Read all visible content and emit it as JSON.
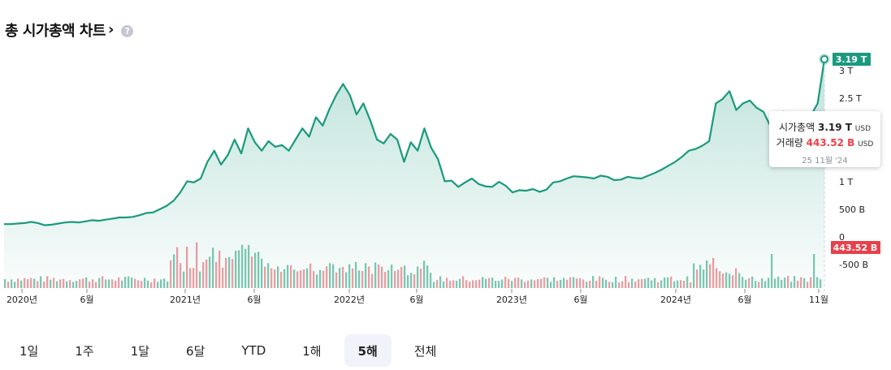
{
  "header": {
    "title": "총 시가총액 차트",
    "chevron": "›",
    "help_icon": "?"
  },
  "chart_data": {
    "type": "area",
    "y_unit": "USD",
    "y_ticks": [
      "3 T",
      "2.5 T",
      "1 T",
      "500 B",
      "0",
      "-500 B"
    ],
    "x_ticks": [
      "2020년",
      "6월",
      "2021년",
      "6월",
      "2022년",
      "6월",
      "2023년",
      "6월",
      "2024년",
      "6월",
      "11월"
    ],
    "ylim": [
      0,
      3.3
    ],
    "series": [
      {
        "values_trillion": [
          0.23,
          0.23,
          0.24,
          0.25,
          0.27,
          0.25,
          0.21,
          0.22,
          0.24,
          0.26,
          0.27,
          0.26,
          0.28,
          0.3,
          0.29,
          0.31,
          0.33,
          0.35,
          0.35,
          0.36,
          0.39,
          0.43,
          0.44,
          0.5,
          0.56,
          0.65,
          0.8,
          1.0,
          0.98,
          1.05,
          1.35,
          1.55,
          1.3,
          1.47,
          1.75,
          1.5,
          1.95,
          1.7,
          1.55,
          1.72,
          1.62,
          1.65,
          1.55,
          1.75,
          1.95,
          1.8,
          2.15,
          2.0,
          2.3,
          2.55,
          2.75,
          2.55,
          2.2,
          2.4,
          2.1,
          1.75,
          1.68,
          1.85,
          1.75,
          1.35,
          1.7,
          1.55,
          1.95,
          1.6,
          1.4,
          1.0,
          1.01,
          0.9,
          0.98,
          1.05,
          0.95,
          0.91,
          0.9,
          0.99,
          0.92,
          0.8,
          0.84,
          0.83,
          0.86,
          0.81,
          0.85,
          0.98,
          1.0,
          1.05,
          1.09,
          1.08,
          1.07,
          1.05,
          1.1,
          1.08,
          1.02,
          1.03,
          1.08,
          1.06,
          1.05,
          1.1,
          1.15,
          1.21,
          1.28,
          1.35,
          1.44,
          1.55,
          1.58,
          1.64,
          1.72,
          2.4,
          2.48,
          2.62,
          2.28,
          2.4,
          2.45,
          2.32,
          2.25,
          2.0,
          2.2,
          2.25,
          2.0,
          2.05,
          2.15,
          2.18,
          2.4,
          3.19
        ],
        "color": "#1a9a7e"
      }
    ],
    "volume_bars": {
      "up_color": "#7fc8b3",
      "down_color": "#f09ea4"
    },
    "last_value_badge": "3.19 T",
    "last_volume_badge": "443.52 B",
    "badge_up_color": "#1a9a7e",
    "badge_down_color": "#e8404a",
    "grid": false
  },
  "tooltip": {
    "mcap_label": "시가총액",
    "mcap_value": "3.19 T",
    "mcap_unit": "USD",
    "vol_label": "거래량",
    "vol_value": "443.52 B",
    "vol_unit": "USD",
    "date": "25 11월 '24"
  },
  "tabs": [
    "1일",
    "1주",
    "1달",
    "6달",
    "YTD",
    "1해",
    "5해",
    "전체"
  ],
  "active_tab": "5해"
}
